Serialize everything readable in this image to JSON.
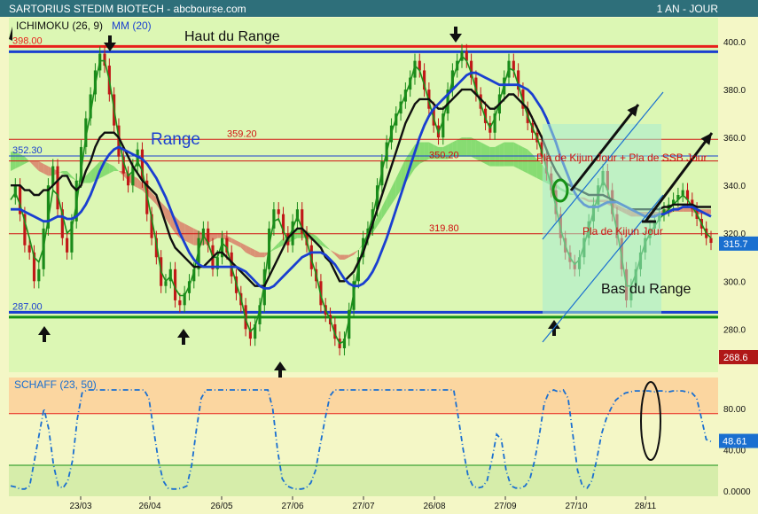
{
  "header": {
    "title": "SARTORIUS STEDIM BIOTECH - abcbourse.com",
    "period": "1 AN - JOUR"
  },
  "colors": {
    "header_bg": "#2e6f7a",
    "price_bg": "#dcf7b4",
    "cloud_bull": "#7dd86a",
    "cloud_bear": "#d9866e",
    "kijun": "#101010",
    "tenkan": "#1c8f1c",
    "mm20": "#1a3fd0",
    "bull_candle": "#1a8a1a",
    "bear_candle": "#c01818",
    "resistance": "#e8201c",
    "support": "#169116",
    "schaff_line": "#1a6fd0",
    "schaff_zone_high": "#fbd6a0",
    "schaff_zone_low": "#d6edaa",
    "last_price_bg": "#1a6fd0",
    "low_price_bg": "#b01818"
  },
  "chart_data": [
    {
      "type": "candlestick",
      "legend": [
        "ICHIMOKU (26, 9)",
        "MM (20)"
      ],
      "ylim": [
        262,
        410
      ],
      "yticks": [
        280,
        300,
        320,
        340,
        360,
        380,
        400
      ],
      "x_ticks": [
        "23/03",
        "26/04",
        "26/05",
        "27/06",
        "27/07",
        "26/08",
        "27/09",
        "27/10",
        "28/11"
      ],
      "last_price": "315.7",
      "low_marker": "268.6",
      "levels": [
        {
          "value": 398.0,
          "label": "398.00",
          "color": "#e8201c",
          "width": 3
        },
        {
          "value": 395.8,
          "label": "",
          "color": "#1a3fd0",
          "width": 3
        },
        {
          "value": 359.2,
          "label": "359.20",
          "color": "#d01010",
          "width": 1
        },
        {
          "value": 352.3,
          "label": "352.30",
          "color": "#1a3fd0",
          "width": 1
        },
        {
          "value": 350.2,
          "label": "350.20",
          "color": "#d01010",
          "width": 1
        },
        {
          "value": 319.8,
          "label": "319.80",
          "color": "#d01010",
          "width": 1
        },
        {
          "value": 287.0,
          "label": "287.00",
          "color": "#1a3fd0",
          "width": 3
        },
        {
          "value": 285.0,
          "label": "",
          "color": "#169116",
          "width": 3
        }
      ],
      "close": [
        335,
        340,
        328,
        315,
        312,
        300,
        305,
        322,
        340,
        348,
        330,
        318,
        312,
        325,
        342,
        356,
        368,
        378,
        388,
        395,
        390,
        378,
        365,
        352,
        345,
        340,
        348,
        355,
        342,
        328,
        318,
        310,
        298,
        300,
        305,
        292,
        290,
        295,
        300,
        305,
        318,
        322,
        315,
        305,
        310,
        318,
        312,
        302,
        295,
        290,
        280,
        276,
        282,
        290,
        305,
        322,
        330,
        328,
        320,
        315,
        325,
        330,
        320,
        315,
        305,
        300,
        290,
        286,
        282,
        276,
        272,
        276,
        288,
        300,
        310,
        318,
        322,
        330,
        340,
        350,
        358,
        365,
        370,
        375,
        380,
        385,
        392,
        388,
        380,
        372,
        365,
        360,
        370,
        380,
        388,
        392,
        396,
        392,
        385,
        378,
        372,
        366,
        362,
        370,
        378,
        385,
        392,
        388,
        380,
        372,
        366,
        362,
        358,
        352,
        345,
        338,
        328,
        318,
        312,
        308,
        305,
        310,
        318,
        325,
        332,
        340,
        346,
        338,
        328,
        318,
        305,
        292,
        298,
        305,
        312,
        318,
        322,
        325,
        328,
        330,
        332,
        334,
        336,
        338,
        334,
        330,
        326,
        322,
        318,
        316
      ],
      "ichimoku": {
        "kijun": [
          340,
          340,
          340,
          338,
          338,
          336,
          336,
          338,
          338,
          340,
          342,
          344,
          344,
          340,
          338,
          340,
          346,
          350,
          356,
          360,
          362,
          362,
          362,
          360,
          356,
          352,
          348,
          345,
          342,
          340,
          338,
          336,
          330,
          324,
          318,
          314,
          312,
          310,
          308,
          306,
          306,
          306,
          308,
          310,
          312,
          312,
          310,
          308,
          306,
          304,
          302,
          300,
          298,
          298,
          298,
          302,
          306,
          310,
          314,
          318,
          320,
          322,
          322,
          320,
          318,
          316,
          314,
          310,
          308,
          304,
          300,
          300,
          302,
          304,
          308,
          312,
          318,
          324,
          330,
          336,
          342,
          348,
          354,
          360,
          366,
          370,
          374,
          376,
          376,
          376,
          374,
          372,
          372,
          374,
          376,
          378,
          380,
          380,
          380,
          378,
          376,
          374,
          372,
          372,
          374,
          376,
          378,
          378,
          376,
          374,
          372,
          368,
          364,
          360,
          355,
          350,
          346,
          343,
          341,
          340,
          339,
          338,
          337,
          336,
          336,
          336,
          336,
          335,
          334,
          333,
          332,
          331,
          330,
          330,
          330,
          330,
          330,
          330,
          330,
          331,
          331,
          332,
          332,
          332,
          332,
          332,
          331,
          331,
          331,
          331
        ],
        "tenkan": [
          334,
          337,
          332,
          325,
          318,
          310,
          308,
          314,
          326,
          338,
          336,
          328,
          320,
          322,
          332,
          346,
          360,
          370,
          382,
          392,
          392,
          384,
          372,
          360,
          350,
          344,
          346,
          350,
          346,
          336,
          326,
          316,
          304,
          300,
          302,
          297,
          294,
          294,
          298,
          304,
          313,
          319,
          316,
          310,
          310,
          316,
          314,
          306,
          299,
          293,
          284,
          279,
          281,
          288,
          299,
          315,
          325,
          326,
          321,
          317,
          322,
          327,
          322,
          317,
          309,
          303,
          294,
          288,
          284,
          278,
          274,
          275,
          284,
          295,
          306,
          315,
          320,
          327,
          336,
          346,
          354,
          362,
          368,
          373,
          378,
          383,
          390,
          388,
          382,
          375,
          368,
          362,
          367,
          376,
          384,
          390,
          394,
          392,
          387,
          380,
          374,
          368,
          364,
          368,
          375,
          382,
          389,
          388,
          382,
          375,
          369,
          364,
          360,
          354,
          347,
          340,
          331,
          322,
          315,
          310,
          307,
          309,
          315,
          322,
          329,
          336,
          342,
          338,
          330,
          321,
          310,
          298,
          298,
          303,
          310,
          316,
          320,
          323,
          326,
          328,
          330,
          332,
          334,
          336,
          334,
          331,
          328,
          324,
          320,
          318
        ],
        "span_a": [
          354,
          354,
          353,
          352,
          350,
          348,
          346,
          345,
          344,
          344,
          345,
          346,
          346,
          344,
          342,
          342,
          344,
          346,
          348,
          350,
          350,
          349,
          348,
          346,
          344,
          342,
          340,
          339,
          338,
          336,
          334,
          332,
          329,
          326,
          323,
          320,
          318,
          317,
          316,
          315,
          315,
          315,
          316,
          317,
          318,
          318,
          317,
          316,
          315,
          314,
          312,
          311,
          310,
          310,
          310,
          312,
          314,
          316,
          318,
          320,
          321,
          322,
          322,
          321,
          320,
          319,
          317,
          315,
          313,
          311,
          309,
          309,
          310,
          311,
          313,
          316,
          319,
          323,
          327,
          331,
          335,
          339,
          343,
          347,
          351,
          354,
          357,
          358,
          358,
          358,
          357,
          356,
          356,
          357,
          358,
          359,
          360,
          360,
          360,
          359,
          358,
          357,
          356,
          356,
          357,
          358,
          358,
          358,
          357,
          356,
          355,
          353,
          351,
          349,
          346,
          343,
          341,
          339,
          338,
          337,
          336,
          335,
          334,
          333,
          333,
          333,
          333,
          332,
          331,
          330,
          329,
          328,
          327,
          327,
          327,
          327,
          327,
          327,
          327,
          328,
          328,
          329,
          329,
          329,
          329,
          329,
          328,
          328,
          328,
          328
        ],
        "span_b": [
          346,
          347,
          348,
          349,
          350,
          350,
          350,
          349,
          348,
          347,
          346,
          345,
          344,
          343,
          342,
          341,
          341,
          341,
          342,
          343,
          344,
          345,
          346,
          346,
          346,
          345,
          344,
          343,
          341,
          339,
          337,
          335,
          333,
          331,
          329,
          327,
          325,
          324,
          323,
          322,
          321,
          320,
          320,
          320,
          320,
          320,
          319,
          318,
          317,
          316,
          315,
          314,
          313,
          312,
          312,
          312,
          313,
          314,
          315,
          316,
          317,
          318,
          318,
          318,
          317,
          316,
          315,
          314,
          313,
          312,
          311,
          311,
          311,
          312,
          313,
          315,
          317,
          320,
          323,
          326,
          329,
          332,
          335,
          338,
          341,
          344,
          347,
          349,
          350,
          351,
          351,
          351,
          351,
          351,
          352,
          352,
          352,
          352,
          352,
          351,
          350,
          349,
          348,
          348,
          348,
          348,
          348,
          348,
          347,
          346,
          345,
          344,
          343,
          342,
          341,
          340,
          339,
          338,
          337,
          336,
          336,
          335,
          335,
          334,
          334,
          334,
          334,
          334,
          333,
          332,
          331,
          330,
          330,
          329,
          329,
          329,
          329,
          329,
          329,
          330,
          330,
          330,
          331,
          331,
          331,
          331,
          330,
          330,
          330,
          330
        ]
      },
      "mm20": [
        330,
        330,
        330,
        329,
        328,
        327,
        326,
        325,
        325,
        326,
        327,
        327,
        326,
        326,
        327,
        329,
        332,
        336,
        341,
        346,
        350,
        353,
        355,
        356,
        355,
        354,
        353,
        352,
        351,
        349,
        346,
        343,
        339,
        335,
        330,
        325,
        320,
        316,
        312,
        309,
        307,
        306,
        306,
        306,
        306,
        306,
        306,
        306,
        306,
        305,
        304,
        302,
        300,
        298,
        297,
        297,
        298,
        300,
        302,
        304,
        306,
        308,
        310,
        311,
        312,
        312,
        312,
        311,
        309,
        307,
        304,
        301,
        299,
        298,
        298,
        299,
        301,
        304,
        308,
        313,
        318,
        324,
        330,
        336,
        342,
        348,
        354,
        360,
        365,
        369,
        372,
        374,
        376,
        378,
        380,
        382,
        384,
        386,
        387,
        387,
        386,
        385,
        384,
        383,
        382,
        382,
        382,
        382,
        382,
        381,
        380,
        378,
        375,
        372,
        368,
        363,
        358,
        352,
        347,
        342,
        337,
        334,
        332,
        331,
        331,
        331,
        332,
        333,
        333,
        333,
        332,
        331,
        330,
        329,
        328,
        327,
        327,
        327,
        328,
        328,
        329,
        330,
        330,
        331,
        331,
        331,
        330,
        329,
        328,
        327
      ],
      "annotations": {
        "top_range": "Haut du Range",
        "range": "Range",
        "bottom_range": "Bas du Range",
        "kijun_ssb": "Pla de Kijun Jour + Pla de SSB Jour",
        "kijun": "Pla de Kijun Jour"
      }
    },
    {
      "type": "line",
      "name": "SCHAFF (23, 50)",
      "ylim": [
        -5,
        110
      ],
      "yticks": [
        "0.0000",
        "40.00",
        "80.00"
      ],
      "zones": [
        75,
        25
      ],
      "last_value": "48.61",
      "values": [
        5,
        4,
        2,
        2,
        5,
        30,
        55,
        80,
        60,
        25,
        5,
        3,
        10,
        30,
        70,
        95,
        98,
        98,
        98,
        98,
        98,
        98,
        98,
        98,
        98,
        98,
        98,
        98,
        98,
        90,
        60,
        30,
        10,
        3,
        2,
        2,
        3,
        5,
        25,
        60,
        90,
        98,
        98,
        98,
        98,
        98,
        98,
        98,
        98,
        98,
        98,
        98,
        98,
        98,
        98,
        80,
        40,
        12,
        5,
        3,
        2,
        2,
        3,
        8,
        20,
        45,
        70,
        92,
        98,
        98,
        98,
        98,
        98,
        98,
        98,
        98,
        98,
        98,
        98,
        98,
        98,
        98,
        98,
        98,
        98,
        98,
        98,
        98,
        98,
        98,
        98,
        98,
        98,
        98,
        70,
        40,
        15,
        5,
        3,
        4,
        10,
        30,
        55,
        50,
        20,
        5,
        3,
        3,
        5,
        12,
        30,
        55,
        85,
        96,
        98,
        96,
        98,
        90,
        55,
        20,
        5,
        3,
        10,
        30,
        55,
        70,
        80,
        88,
        92,
        95,
        96,
        97,
        97,
        97,
        97,
        96,
        97,
        97,
        96,
        97,
        97,
        97,
        96,
        95,
        90,
        70,
        50,
        48
      ]
    }
  ]
}
